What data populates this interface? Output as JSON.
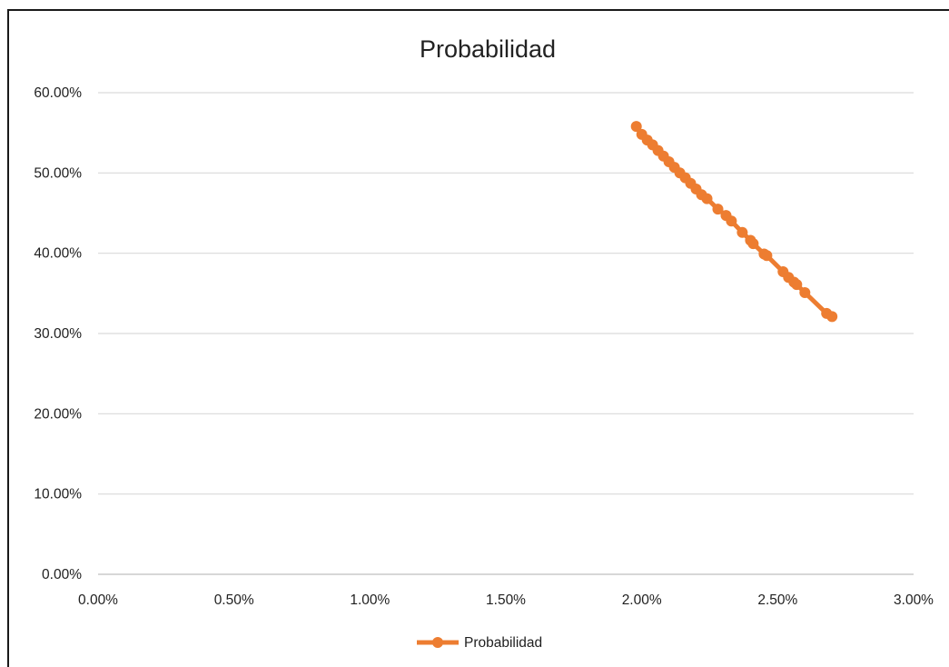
{
  "chart_data": {
    "type": "line",
    "title": "Probabilidad",
    "xlabel": "",
    "ylabel": "",
    "xlim": [
      0,
      0.03
    ],
    "ylim": [
      0,
      0.6
    ],
    "x_ticks": [
      "0.00%",
      "0.50%",
      "1.00%",
      "1.50%",
      "2.00%",
      "2.50%",
      "3.00%"
    ],
    "y_ticks": [
      "0.00%",
      "10.00%",
      "20.00%",
      "30.00%",
      "40.00%",
      "50.00%",
      "60.00%"
    ],
    "grid": "horizontal",
    "legend_position": "bottom",
    "series": [
      {
        "name": "Probabilidad",
        "color": "#ED7D31",
        "marker": "circle",
        "x": [
          0.0198,
          0.02,
          0.0202,
          0.0204,
          0.0206,
          0.0208,
          0.021,
          0.0212,
          0.0214,
          0.0216,
          0.0218,
          0.022,
          0.0222,
          0.0224,
          0.0228,
          0.0231,
          0.0233,
          0.0237,
          0.024,
          0.0241,
          0.0245,
          0.0246,
          0.0252,
          0.0254,
          0.0256,
          0.0257,
          0.026,
          0.0268,
          0.027
        ],
        "y": [
          0.558,
          0.548,
          0.541,
          0.535,
          0.528,
          0.521,
          0.514,
          0.507,
          0.5,
          0.494,
          0.487,
          0.48,
          0.473,
          0.468,
          0.455,
          0.447,
          0.44,
          0.426,
          0.416,
          0.412,
          0.399,
          0.397,
          0.377,
          0.37,
          0.364,
          0.361,
          0.351,
          0.325,
          0.321
        ]
      }
    ]
  }
}
